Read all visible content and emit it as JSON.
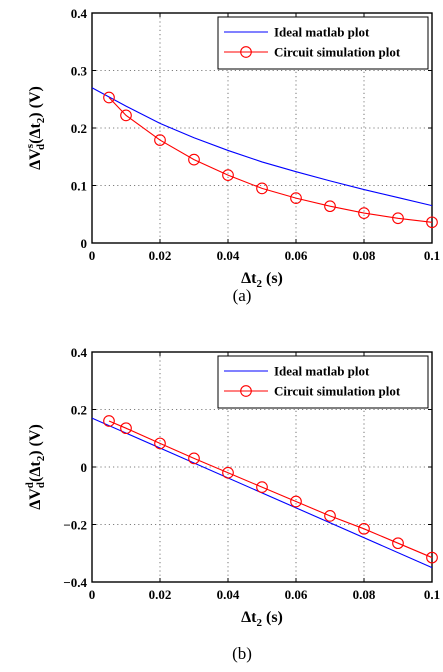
{
  "chart_data": [
    {
      "type": "line",
      "caption": "(a)",
      "xlabel": "Δt",
      "xlabel_sub": "2",
      "xlabel_unit": " (s)",
      "ylabel_main": "ΔV",
      "ylabel_sup": "s",
      "ylabel_sub": "d",
      "ylabel_rest": "(Δt",
      "ylabel_sub2": "2",
      "ylabel_end": ") (V)",
      "xlim": [
        0,
        0.1
      ],
      "ylim": [
        0,
        0.4
      ],
      "xticks": [
        0,
        0.02,
        0.04,
        0.06,
        0.08,
        0.1
      ],
      "xtick_labels": [
        "0",
        "0.02",
        "0.04",
        "0.06",
        "0.08",
        "0.1"
      ],
      "yticks": [
        0,
        0.1,
        0.2,
        0.3,
        0.4
      ],
      "ytick_labels": [
        "0",
        "0.1",
        "0.2",
        "0.3",
        "0.4"
      ],
      "grid": true,
      "legend_position": "top-right",
      "series": [
        {
          "name": "Ideal matlab plot",
          "color": "#0000ff",
          "marker": "none",
          "x": [
            0,
            0.01,
            0.02,
            0.03,
            0.04,
            0.05,
            0.06,
            0.07,
            0.08,
            0.09,
            0.1
          ],
          "y": [
            0.27,
            0.238,
            0.208,
            0.183,
            0.161,
            0.141,
            0.124,
            0.108,
            0.093,
            0.079,
            0.065
          ]
        },
        {
          "name": "Circuit simulation plot",
          "color": "#ff0000",
          "marker": "circle",
          "x": [
            0.005,
            0.01,
            0.02,
            0.03,
            0.04,
            0.05,
            0.06,
            0.07,
            0.08,
            0.09,
            0.1
          ],
          "y": [
            0.253,
            0.222,
            0.179,
            0.145,
            0.118,
            0.095,
            0.078,
            0.064,
            0.052,
            0.043,
            0.036
          ]
        }
      ]
    },
    {
      "type": "line",
      "caption": "(b)",
      "xlabel": "Δt",
      "xlabel_sub": "2",
      "xlabel_unit": " (s)",
      "ylabel_main": "ΔV",
      "ylabel_sup": "d",
      "ylabel_sub": "d",
      "ylabel_rest": "(Δt",
      "ylabel_sub2": "2",
      "ylabel_end": ") (V)",
      "xlim": [
        0,
        0.1
      ],
      "ylim": [
        -0.4,
        0.4
      ],
      "xticks": [
        0,
        0.02,
        0.04,
        0.06,
        0.08,
        0.1
      ],
      "xtick_labels": [
        "0",
        "0.02",
        "0.04",
        "0.06",
        "0.08",
        "0.1"
      ],
      "yticks": [
        -0.4,
        -0.2,
        0,
        0.2,
        0.4
      ],
      "ytick_labels": [
        "−0.4",
        "−0.2",
        "0",
        "0.2",
        "0.4"
      ],
      "grid": true,
      "legend_position": "top-right",
      "series": [
        {
          "name": "Ideal matlab plot",
          "color": "#0000ff",
          "marker": "none",
          "x": [
            0,
            0.1
          ],
          "y": [
            0.17,
            -0.35
          ]
        },
        {
          "name": "Circuit simulation plot",
          "color": "#ff0000",
          "marker": "circle",
          "x": [
            0.005,
            0.01,
            0.02,
            0.03,
            0.04,
            0.05,
            0.06,
            0.07,
            0.08,
            0.09,
            0.1
          ],
          "y": [
            0.16,
            0.135,
            0.082,
            0.03,
            -0.02,
            -0.07,
            -0.12,
            -0.17,
            -0.215,
            -0.265,
            -0.315
          ]
        }
      ]
    }
  ]
}
